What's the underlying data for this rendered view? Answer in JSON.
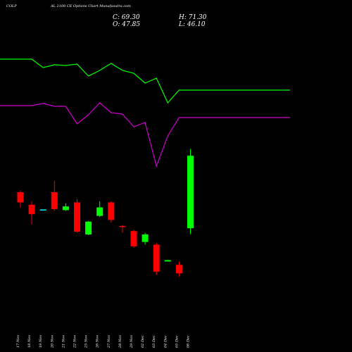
{
  "header": {
    "symbol": "COLP",
    "subtitle": "AL 2100 CE Options Chart Munafasutra.com",
    "close_label": "C: 69.30",
    "open_label": "O: 47.85",
    "high_label": "H: 71.30",
    "low_label": "L: 46.10"
  },
  "colors": {
    "background": "#000000",
    "up": "#00ff00",
    "down": "#ff0000",
    "flat": "#00ffff",
    "line_green": "#00ff00",
    "line_magenta": "#cc00cc",
    "text": "#ffffff"
  },
  "chart_data": {
    "type": "candlestick",
    "categories": [
      "17 Nov",
      "18 Nov",
      "19 Nov",
      "20 Nov",
      "21 Nov",
      "22 Nov",
      "25 Nov",
      "26 Nov",
      "27 Nov",
      "28 Nov",
      "29 Nov",
      "02 Dec",
      "03 Dec",
      "04 Dec",
      "05 Dec",
      "06 Dec"
    ],
    "candles": [
      {
        "date": "17 Nov",
        "open": 58.5,
        "high": 59.0,
        "low": 54.0,
        "close": 55.5
      },
      {
        "date": "18 Nov",
        "open": 54.8,
        "high": 55.8,
        "low": 49.0,
        "close": 52.0
      },
      {
        "date": "19 Nov",
        "open": 53.4,
        "high": 53.4,
        "low": 53.3,
        "close": 53.3
      },
      {
        "date": "20 Nov",
        "open": 58.5,
        "high": 61.8,
        "low": 53.0,
        "close": 53.5
      },
      {
        "date": "21 Nov",
        "open": 53.2,
        "high": 55.2,
        "low": 53.0,
        "close": 54.3
      },
      {
        "date": "22 Nov",
        "open": 55.5,
        "high": 56.5,
        "low": 46.5,
        "close": 46.8
      },
      {
        "date": "25 Nov",
        "open": 46.0,
        "high": 50.0,
        "low": 45.8,
        "close": 49.8
      },
      {
        "date": "26 Nov",
        "open": 51.5,
        "high": 55.8,
        "low": 51.2,
        "close": 54.0
      },
      {
        "date": "27 Nov",
        "open": 55.5,
        "high": 55.8,
        "low": 49.5,
        "close": 50.3
      },
      {
        "date": "28 Nov",
        "open": 48.5,
        "high": 48.8,
        "low": 46.5,
        "close": 48.2
      },
      {
        "date": "29 Nov",
        "open": 47.0,
        "high": 47.3,
        "low": 42.0,
        "close": 42.5
      },
      {
        "date": "02 Dec",
        "open": 43.8,
        "high": 46.5,
        "low": 43.0,
        "close": 46.0
      },
      {
        "date": "03 Dec",
        "open": 43.0,
        "high": 43.5,
        "low": 34.0,
        "close": 35.0
      },
      {
        "date": "04 Dec",
        "open": 38.0,
        "high": 38.5,
        "low": 38.2,
        "close": 38.4
      },
      {
        "date": "05 Dec",
        "open": 37.0,
        "high": 38.0,
        "low": 33.5,
        "close": 34.5
      },
      {
        "date": "06 Dec",
        "open": 47.85,
        "high": 71.3,
        "low": 46.1,
        "close": 69.3
      }
    ],
    "lines": [
      {
        "color": "#00ff00",
        "values": [
          84,
          84,
          96,
          92,
          93,
          91,
          108,
          100,
          90,
          100,
          104,
          118,
          111,
          146,
          128,
          128
        ]
      },
      {
        "color": "#cc00cc",
        "values": [
          150,
          150,
          147,
          151,
          151,
          176,
          163,
          146,
          160,
          162,
          180,
          174,
          236,
          193,
          167,
          167
        ]
      }
    ]
  }
}
